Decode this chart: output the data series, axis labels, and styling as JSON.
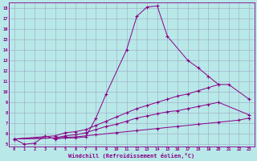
{
  "xlabel": "Windchill (Refroidissement éolien,°C)",
  "bg_color": "#b8e8e8",
  "line_color": "#880088",
  "xlim": [
    -0.5,
    23.5
  ],
  "ylim": [
    4.8,
    18.5
  ],
  "line1_x": [
    0,
    1,
    2,
    3,
    4,
    5,
    6,
    7,
    8,
    9,
    11,
    12,
    13,
    14,
    15,
    17,
    18,
    19,
    20
  ],
  "line1_y": [
    5.5,
    5.0,
    5.1,
    5.8,
    5.5,
    5.6,
    5.6,
    5.7,
    7.5,
    9.8,
    14.0,
    17.2,
    18.1,
    18.2,
    15.3,
    13.0,
    12.3,
    11.5,
    10.7
  ],
  "line2_x": [
    0,
    4,
    5,
    6,
    7,
    8,
    9,
    10,
    11,
    12,
    13,
    14,
    15,
    16,
    17,
    18,
    19,
    20,
    21,
    23
  ],
  "line2_y": [
    5.5,
    5.8,
    6.1,
    6.2,
    6.4,
    6.8,
    7.2,
    7.6,
    8.0,
    8.4,
    8.7,
    9.0,
    9.3,
    9.6,
    9.8,
    10.1,
    10.4,
    10.7,
    10.7,
    9.3
  ],
  "line3_x": [
    0,
    4,
    5,
    6,
    7,
    8,
    9,
    10,
    11,
    12,
    13,
    14,
    15,
    16,
    17,
    18,
    19,
    20,
    23
  ],
  "line3_y": [
    5.5,
    5.6,
    5.8,
    5.9,
    6.1,
    6.4,
    6.7,
    6.9,
    7.2,
    7.5,
    7.7,
    7.9,
    8.1,
    8.2,
    8.4,
    8.6,
    8.8,
    9.0,
    7.8
  ],
  "line4_x": [
    0,
    4,
    6,
    8,
    10,
    12,
    14,
    16,
    18,
    20,
    22,
    23
  ],
  "line4_y": [
    5.5,
    5.6,
    5.7,
    5.9,
    6.1,
    6.3,
    6.5,
    6.7,
    6.9,
    7.1,
    7.3,
    7.5
  ],
  "yticks": [
    5,
    6,
    7,
    8,
    9,
    10,
    11,
    12,
    13,
    14,
    15,
    16,
    17,
    18
  ],
  "xticks": [
    0,
    1,
    2,
    3,
    4,
    5,
    6,
    7,
    8,
    9,
    10,
    11,
    12,
    13,
    14,
    15,
    16,
    17,
    18,
    19,
    20,
    21,
    22,
    23
  ],
  "grid_color": "#9999bb",
  "marker": "+"
}
